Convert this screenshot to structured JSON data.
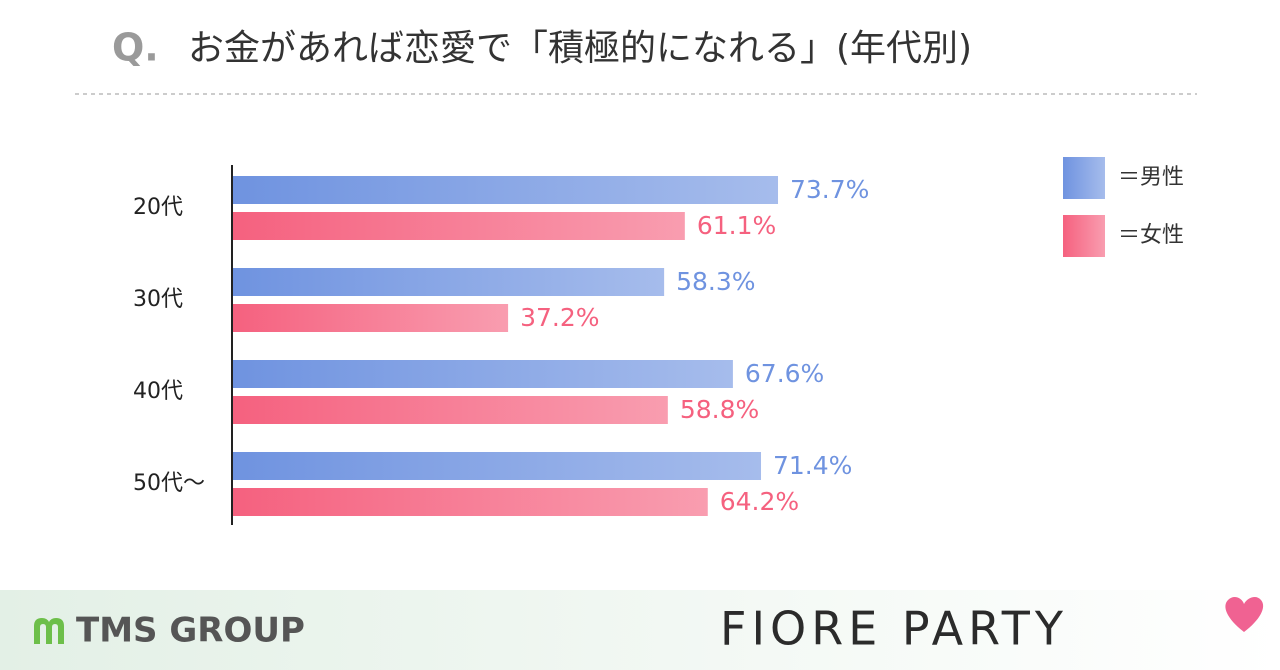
{
  "chart_data": {
    "type": "bar",
    "orientation": "horizontal",
    "question_mark": "Q.",
    "title": "お金があれば恋愛で「積極的になれる」(年代別)",
    "categories": [
      "20代",
      "30代",
      "40代",
      "50代〜"
    ],
    "series": [
      {
        "name": "＝男性",
        "color": "#6f93e0",
        "values": [
          73.7,
          58.3,
          67.6,
          71.4
        ],
        "value_labels": [
          "73.7%",
          "58.3%",
          "67.6%",
          "71.4%"
        ]
      },
      {
        "name": "＝女性",
        "color": "#f5617f",
        "values": [
          61.1,
          37.2,
          58.8,
          64.2
        ],
        "value_labels": [
          "61.1%",
          "37.2%",
          "58.8%",
          "64.2%"
        ]
      }
    ],
    "xlim": [
      0,
      100
    ]
  },
  "footer": {
    "left_logo": "TMS GROUP",
    "right_logo": "FIORE PARTY"
  }
}
